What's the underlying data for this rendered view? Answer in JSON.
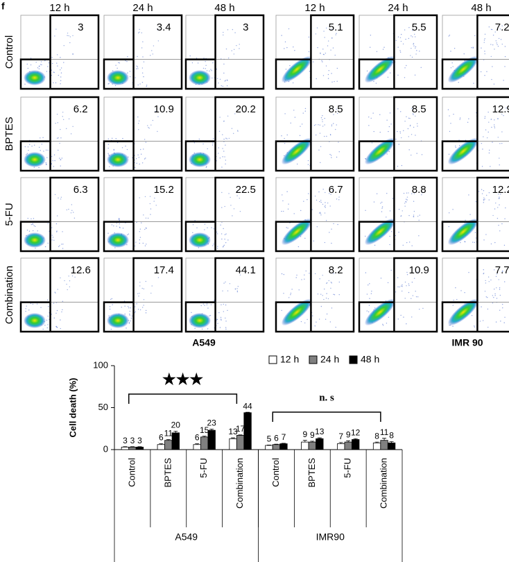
{
  "panel_label": "f",
  "flow": {
    "time_headers": [
      "12 h",
      "24 h",
      "48 h",
      "12 h",
      "24 h",
      "48 h"
    ],
    "treatments": [
      "Control",
      "BPTES",
      "5-FU",
      "Combination"
    ],
    "cell_lines": [
      "A549",
      "IMR 90"
    ],
    "values": [
      [
        3,
        3.4,
        3,
        5.1,
        5.5,
        7.2
      ],
      [
        6.2,
        10.9,
        20.2,
        8.5,
        8.5,
        12.9
      ],
      [
        6.3,
        15.2,
        22.5,
        6.7,
        8.8,
        12.2
      ],
      [
        12.6,
        17.4,
        44.1,
        8.2,
        10.9,
        7.7
      ]
    ]
  },
  "chart_data": {
    "type": "bar",
    "y_label": "Cell death (%)",
    "categories": [
      "Control",
      "BPTES",
      "5-FU",
      "Combination",
      "Control",
      "BPTES",
      "5-FU",
      "Combination"
    ],
    "groups": [
      "A549",
      "IMR90"
    ],
    "series": [
      {
        "name": "12 h",
        "color": "#ffffff",
        "values": [
          3,
          6,
          6,
          13,
          5,
          9,
          7,
          8
        ],
        "errors": [
          0.5,
          1,
          1,
          1,
          0.5,
          2,
          1.5,
          1
        ]
      },
      {
        "name": "24 h",
        "color": "#808080",
        "values": [
          3,
          11,
          15,
          17,
          6,
          9,
          9,
          11
        ],
        "errors": [
          0.5,
          1,
          1,
          0.5,
          0.5,
          1,
          1.5,
          2.5
        ]
      },
      {
        "name": "48 h",
        "color": "#000000",
        "values": [
          3,
          20,
          23,
          44,
          7,
          13,
          12,
          8
        ],
        "errors": [
          0.5,
          2,
          1.5,
          0.5,
          0.5,
          1,
          1,
          1.5
        ]
      }
    ],
    "ylim": [
      0,
      100
    ],
    "yticks": [
      0,
      50,
      100
    ],
    "annotations": [
      {
        "text": "★★★",
        "from": 0,
        "to": 3
      },
      {
        "text": "n. s",
        "from": 4,
        "to": 7
      }
    ]
  }
}
